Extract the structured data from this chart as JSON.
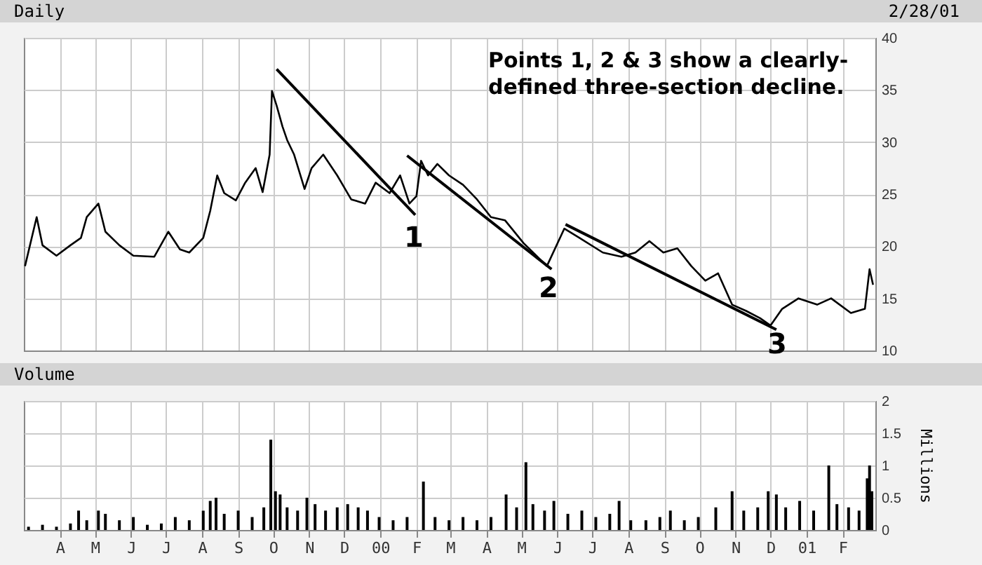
{
  "chart_data": [
    {
      "type": "line",
      "title": "Daily",
      "annotations": [
        "2/28/01",
        "Points 1, 2 & 3 show a clearly-defined three-section decline.",
        "1",
        "2",
        "3"
      ],
      "xlim": [
        "1999-03-01",
        "2001-03-01"
      ],
      "xticks": [
        {
          "value": "1999-04-01",
          "label": null
        },
        {
          "value": "1999-05-01",
          "label": null
        },
        {
          "value": "1999-06-01",
          "label": null
        },
        {
          "value": "1999-07-01",
          "label": null
        },
        {
          "value": "1999-08-01",
          "label": null
        },
        {
          "value": "1999-09-01",
          "label": null
        },
        {
          "value": "1999-10-01",
          "label": null
        },
        {
          "value": "1999-11-01",
          "label": null
        },
        {
          "value": "1999-12-01",
          "label": null
        },
        {
          "value": "2000-01-01",
          "label": null
        },
        {
          "value": "2000-02-01",
          "label": null
        },
        {
          "value": "2000-03-01",
          "label": null
        },
        {
          "value": "2000-04-01",
          "label": null
        },
        {
          "value": "2000-05-01",
          "label": null
        },
        {
          "value": "2000-06-01",
          "label": null
        },
        {
          "value": "2000-07-01",
          "label": null
        },
        {
          "value": "2000-08-01",
          "label": null
        },
        {
          "value": "2000-09-01",
          "label": null
        },
        {
          "value": "2000-10-01",
          "label": null
        },
        {
          "value": "2000-11-01",
          "label": null
        },
        {
          "value": "2000-12-01",
          "label": null
        },
        {
          "value": "2001-01-01",
          "label": null
        },
        {
          "value": "2001-02-01",
          "label": null
        }
      ],
      "ylim": [
        10,
        40
      ],
      "yticks": [
        10,
        15,
        20,
        25,
        30,
        35,
        40
      ],
      "grid": true,
      "tick_labels": "y",
      "marker": "none",
      "line_style": "solid",
      "series": [
        {
          "color": "#000000",
          "x": [
            "1999-03-02",
            "1999-03-12",
            "1999-03-17",
            "1999-03-29",
            "1999-04-10",
            "1999-04-19",
            "1999-04-24",
            "1999-05-04",
            "1999-05-10",
            "1999-05-22",
            "1999-06-03",
            "1999-06-21",
            "1999-07-03",
            "1999-07-13",
            "1999-07-21",
            "1999-08-02",
            "1999-08-08",
            "1999-08-14",
            "1999-08-20",
            "1999-08-30",
            "1999-09-07",
            "1999-09-16",
            "1999-09-22",
            "1999-09-28",
            "1999-09-30",
            "1999-10-04",
            "1999-10-09",
            "1999-10-13",
            "1999-10-19",
            "1999-10-28",
            "1999-11-03",
            "1999-11-13",
            "1999-11-25",
            "1999-12-07",
            "1999-12-19",
            "1999-12-28",
            "2000-01-09",
            "2000-01-18",
            "2000-01-26",
            "2000-02-01",
            "2000-02-05",
            "2000-02-11",
            "2000-02-19",
            "2000-02-29",
            "2000-03-12",
            "2000-03-24",
            "2000-04-05",
            "2000-04-17",
            "2000-05-03",
            "2000-05-23",
            "2000-06-07",
            "2000-06-20",
            "2000-07-10",
            "2000-07-26",
            "2000-08-07",
            "2000-08-19",
            "2000-08-31",
            "2000-09-12",
            "2000-09-24",
            "2000-10-06",
            "2000-10-17",
            "2000-10-29",
            "2000-11-10",
            "2000-11-22",
            "2000-12-01",
            "2000-12-11",
            "2000-12-25",
            "2001-01-10",
            "2001-01-22",
            "2001-02-08",
            "2001-02-20",
            "2001-02-24",
            "2001-02-27"
          ],
          "values": [
            18.1,
            22.8,
            20.1,
            19.1,
            20.1,
            20.8,
            22.8,
            24.1,
            21.4,
            20.1,
            19.1,
            19.0,
            21.4,
            19.7,
            19.4,
            20.8,
            23.4,
            26.8,
            25.1,
            24.4,
            26.1,
            27.5,
            25.2,
            28.8,
            34.9,
            33.5,
            31.5,
            30.2,
            28.8,
            25.5,
            27.5,
            28.8,
            26.8,
            24.5,
            24.1,
            26.1,
            25.1,
            26.8,
            24.1,
            24.8,
            28.2,
            26.8,
            27.9,
            26.8,
            25.9,
            24.5,
            22.8,
            22.5,
            20.3,
            18.1,
            21.7,
            20.8,
            19.4,
            19.0,
            19.4,
            20.5,
            19.4,
            19.8,
            18.1,
            16.7,
            17.4,
            14.4,
            13.8,
            13.1,
            12.4,
            14.0,
            15.0,
            14.4,
            15.0,
            13.6,
            14.0,
            17.8,
            16.3
          ]
        },
        {
          "type": "line",
          "color": "#000000",
          "x": [
            "1999-10-04",
            "2000-01-31"
          ],
          "values": [
            37.0,
            23.0
          ]
        },
        {
          "type": "line",
          "color": "#000000",
          "x": [
            "2000-01-24",
            "2000-05-27"
          ],
          "values": [
            28.7,
            17.8
          ]
        },
        {
          "type": "line",
          "color": "#000000",
          "x": [
            "2000-06-08",
            "2000-12-06"
          ],
          "values": [
            22.1,
            12.0
          ]
        }
      ]
    },
    {
      "type": "bar",
      "title": "Volume",
      "ylabel": "Millions",
      "xlim": [
        "1999-03-01",
        "2001-03-01"
      ],
      "xticks": [
        {
          "value": "1999-04-01",
          "label": "A"
        },
        {
          "value": "1999-05-01",
          "label": "M"
        },
        {
          "value": "1999-06-01",
          "label": "J"
        },
        {
          "value": "1999-07-01",
          "label": "J"
        },
        {
          "value": "1999-08-01",
          "label": "A"
        },
        {
          "value": "1999-09-01",
          "label": "S"
        },
        {
          "value": "1999-10-01",
          "label": "O"
        },
        {
          "value": "1999-11-01",
          "label": "N"
        },
        {
          "value": "1999-12-01",
          "label": "D"
        },
        {
          "value": "2000-01-01",
          "label": "00"
        },
        {
          "value": "2000-02-01",
          "label": "F"
        },
        {
          "value": "2000-03-01",
          "label": "M"
        },
        {
          "value": "2000-04-01",
          "label": "A"
        },
        {
          "value": "2000-05-01",
          "label": "M"
        },
        {
          "value": "2000-06-01",
          "label": "J"
        },
        {
          "value": "2000-07-01",
          "label": "J"
        },
        {
          "value": "2000-08-01",
          "label": "A"
        },
        {
          "value": "2000-09-01",
          "label": "S"
        },
        {
          "value": "2000-10-01",
          "label": "O"
        },
        {
          "value": "2000-11-01",
          "label": "N"
        },
        {
          "value": "2000-12-01",
          "label": "D"
        },
        {
          "value": "2001-01-01",
          "label": "01"
        },
        {
          "value": "2001-02-01",
          "label": "F"
        }
      ],
      "ylim": [
        0,
        2
      ],
      "yticks": [
        0,
        0.5,
        1,
        1.5,
        2
      ],
      "grid": true,
      "series": [
        {
          "color": "#000000",
          "x": [
            "1999-03-05",
            "1999-03-17",
            "1999-03-29",
            "1999-04-10",
            "1999-04-17",
            "1999-04-24",
            "1999-05-04",
            "1999-05-10",
            "1999-05-22",
            "1999-06-03",
            "1999-06-15",
            "1999-06-27",
            "1999-07-09",
            "1999-07-21",
            "1999-08-02",
            "1999-08-08",
            "1999-08-13",
            "1999-08-20",
            "1999-09-01",
            "1999-09-13",
            "1999-09-23",
            "1999-09-29",
            "1999-10-03",
            "1999-10-07",
            "1999-10-13",
            "1999-10-22",
            "1999-10-30",
            "1999-11-06",
            "1999-11-15",
            "1999-11-25",
            "1999-12-04",
            "1999-12-13",
            "1999-12-21",
            "1999-12-31",
            "2000-01-12",
            "2000-01-24",
            "2000-02-07",
            "2000-02-17",
            "2000-02-29",
            "2000-03-12",
            "2000-03-24",
            "2000-04-05",
            "2000-04-18",
            "2000-04-27",
            "2000-05-05",
            "2000-05-11",
            "2000-05-21",
            "2000-05-29",
            "2000-06-10",
            "2000-06-22",
            "2000-07-04",
            "2000-07-16",
            "2000-07-24",
            "2000-08-03",
            "2000-08-16",
            "2000-08-28",
            "2000-09-06",
            "2000-09-18",
            "2000-09-30",
            "2000-10-15",
            "2000-10-29",
            "2000-11-08",
            "2000-11-20",
            "2000-11-29",
            "2000-12-06",
            "2000-12-14",
            "2000-12-26",
            "2001-01-07",
            "2001-01-20",
            "2001-01-27",
            "2001-02-06",
            "2001-02-15",
            "2001-02-22",
            "2001-02-24",
            "2001-02-26"
          ],
          "values": [
            0.05,
            0.08,
            0.05,
            0.1,
            0.3,
            0.15,
            0.3,
            0.25,
            0.15,
            0.2,
            0.08,
            0.1,
            0.2,
            0.15,
            0.3,
            0.45,
            0.5,
            0.25,
            0.3,
            0.2,
            0.35,
            1.4,
            0.6,
            0.55,
            0.35,
            0.3,
            0.5,
            0.4,
            0.3,
            0.35,
            0.4,
            0.35,
            0.3,
            0.2,
            0.15,
            0.2,
            0.75,
            0.2,
            0.15,
            0.2,
            0.15,
            0.2,
            0.55,
            0.35,
            1.05,
            0.4,
            0.3,
            0.45,
            0.25,
            0.3,
            0.2,
            0.25,
            0.45,
            0.15,
            0.15,
            0.2,
            0.3,
            0.15,
            0.2,
            0.35,
            0.6,
            0.3,
            0.35,
            0.6,
            0.55,
            0.35,
            0.45,
            0.3,
            1.0,
            0.4,
            0.35,
            0.3,
            0.8,
            1.0,
            0.6
          ]
        }
      ]
    }
  ]
}
